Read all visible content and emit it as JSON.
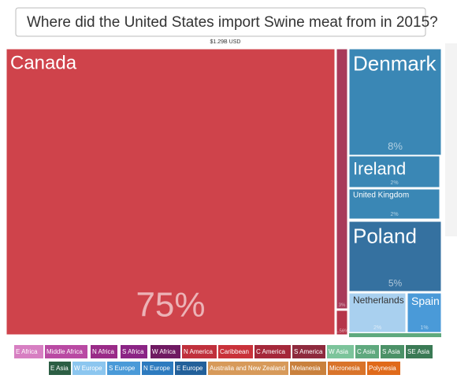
{
  "chart_data": {
    "type": "treemap",
    "title": "Where did the United States import Swine meat from in 2015?",
    "subtitle": "$1.29B USD",
    "categories": [
      "Canada",
      "Denmark",
      "Ireland",
      "United Kingdom",
      "Poland",
      "Netherlands",
      "Spain",
      null,
      null
    ],
    "values": [
      75,
      8,
      2,
      2,
      5,
      2,
      1,
      3,
      1.56
    ],
    "value_labels": [
      "75%",
      "8%",
      "2%",
      "2%",
      "5%",
      "2%",
      "1%",
      "3%",
      "1.56%"
    ],
    "colors": [
      "#cf434b",
      "#3a87b5",
      "#3a87b5",
      "#3a87b5",
      "#3571a0",
      "#a9d0ef",
      "#4a9ad8",
      "#a83a5a",
      "#b5364a"
    ],
    "legend": [
      {
        "name": "E Africa",
        "color": "#d77fc2"
      },
      {
        "name": "Middle Africa",
        "color": "#b94aa3"
      },
      {
        "name": "N Africa",
        "color": "#9a2b88"
      },
      {
        "name": "S Africa",
        "color": "#8b2485"
      },
      {
        "name": "W Africa",
        "color": "#6f1a62"
      },
      {
        "name": "N America",
        "color": "#c0303c"
      },
      {
        "name": "Caribbean",
        "color": "#c9323a"
      },
      {
        "name": "C America",
        "color": "#a5283a"
      },
      {
        "name": "S America",
        "color": "#8e2a3d"
      },
      {
        "name": "W Asia",
        "color": "#7cc49b"
      },
      {
        "name": "C Asia",
        "color": "#5fa97e"
      },
      {
        "name": "S Asia",
        "color": "#4b9167"
      },
      {
        "name": "SE Asia",
        "color": "#3a7a55"
      },
      {
        "name": "E Asia",
        "color": "#2c5e44"
      },
      {
        "name": "W Europe",
        "color": "#8cc6ef"
      },
      {
        "name": "S Europe",
        "color": "#4a9ad8"
      },
      {
        "name": "N Europe",
        "color": "#2d7bbf"
      },
      {
        "name": "E Europe",
        "color": "#22609a"
      },
      {
        "name": "Australia and New Zealand",
        "color": "#d79a5a"
      },
      {
        "name": "Melanesia",
        "color": "#c9813d"
      },
      {
        "name": "Micronesia",
        "color": "#d9742b"
      },
      {
        "name": "Polynesia",
        "color": "#e06a1a"
      }
    ]
  }
}
